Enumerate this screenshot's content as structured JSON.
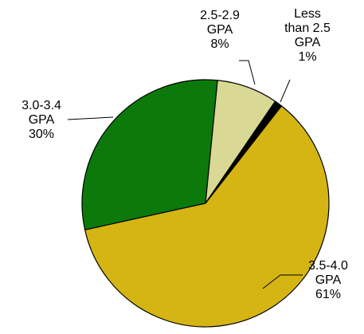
{
  "chart_data": {
    "type": "pie",
    "categories": [
      "3.5-4.0\nGPA",
      "3.0-3.4\nGPA",
      "2.5-2.9\nGPA",
      "Less\nthan 2.5\nGPA"
    ],
    "values": [
      61,
      30,
      8,
      1
    ],
    "value_labels": [
      "61%",
      "30%",
      "8%",
      "1%"
    ],
    "colors": [
      "#d4b514",
      "#0b7a0b",
      "#d9d894",
      "#000000"
    ]
  }
}
